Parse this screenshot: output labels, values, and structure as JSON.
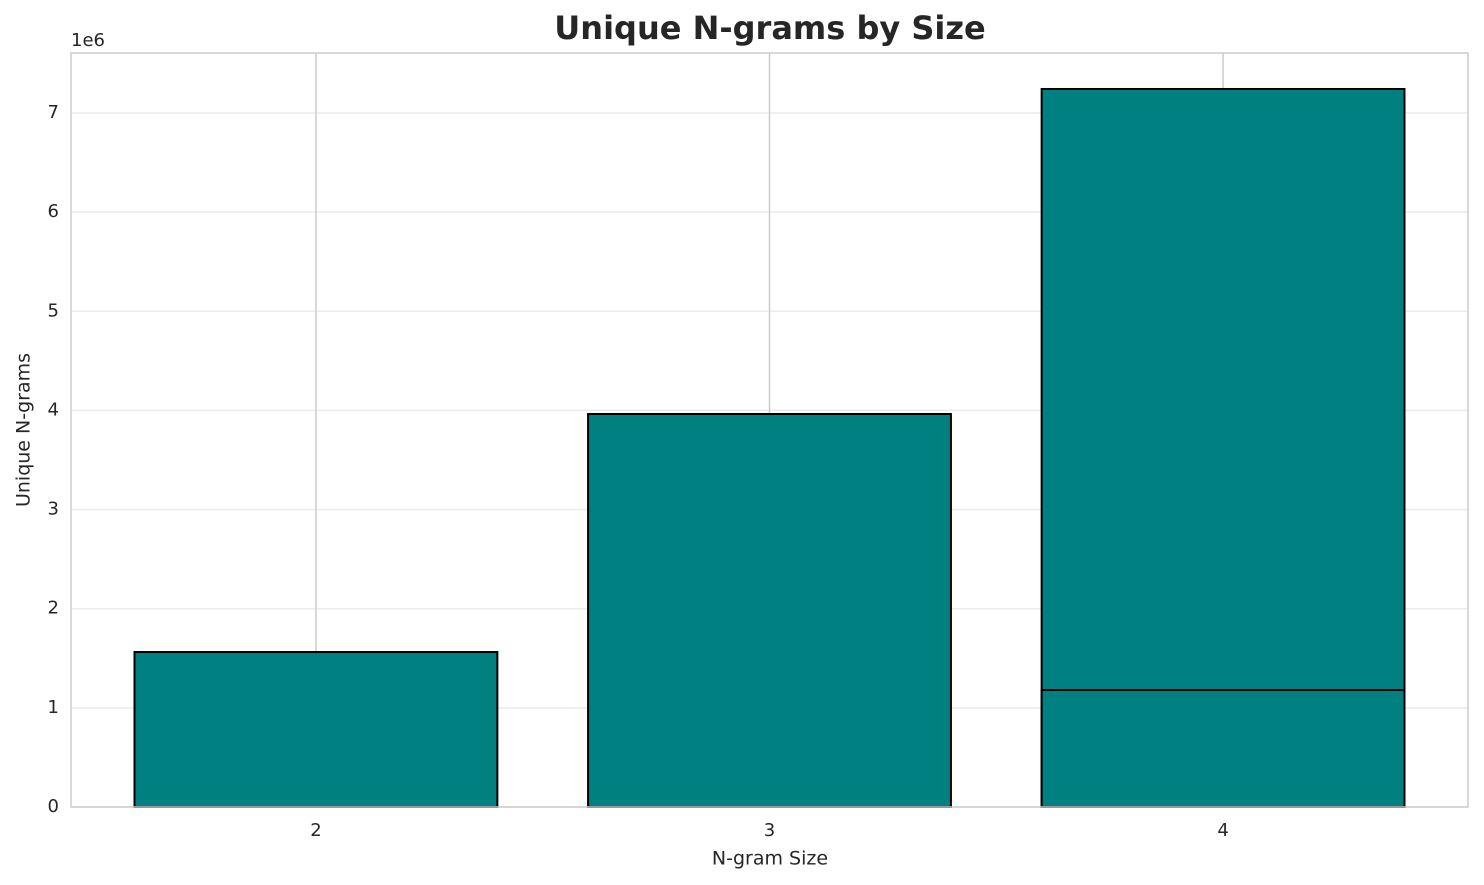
{
  "chart_data": {
    "type": "bar",
    "title": "Unique N-grams by Size",
    "x_label": "N-gram Size",
    "y_label": "Unique N-grams",
    "y_offset_label": "1e6",
    "x": [
      2,
      3,
      4,
      4
    ],
    "values": [
      1563000,
      3964000,
      7242000,
      1180000
    ],
    "bar_width": 0.8,
    "color": "#008080",
    "edgecolor": "#000000",
    "xlim": [
      1.46,
      4.54
    ],
    "xticks": [
      2,
      3,
      4
    ],
    "ylim": [
      0,
      7605000
    ],
    "yticks": [
      {
        "value": 0,
        "label": "0"
      },
      {
        "value": 1000000,
        "label": "1"
      },
      {
        "value": 2000000,
        "label": "2"
      },
      {
        "value": 3000000,
        "label": "3"
      },
      {
        "value": 4000000,
        "label": "4"
      },
      {
        "value": 5000000,
        "label": "5"
      },
      {
        "value": 6000000,
        "label": "6"
      },
      {
        "value": 7000000,
        "label": "7"
      }
    ],
    "grid": true
  }
}
